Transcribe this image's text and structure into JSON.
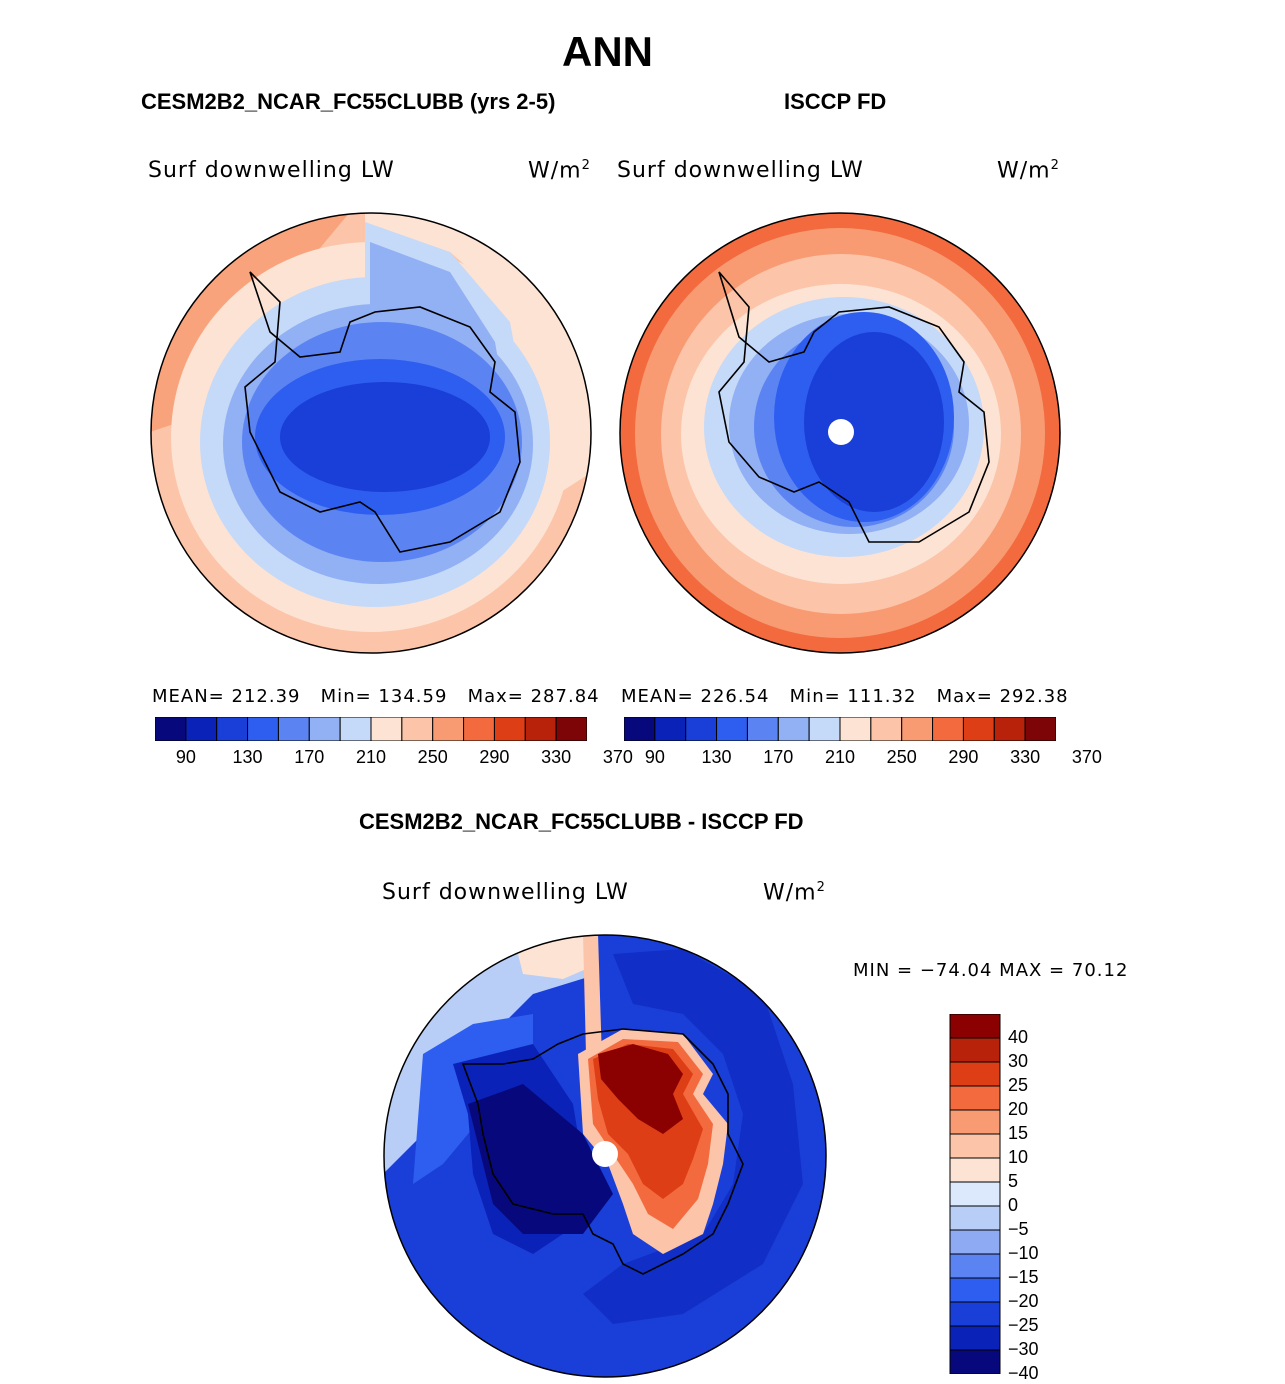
{
  "title": "ANN",
  "top_left": {
    "case_name": "CESM2B2_NCAR_FC55CLUBB (yrs 2-5)",
    "variable": "Surf downwelling LW",
    "units": "W/m",
    "units_exp": "2",
    "mean_label": "MEAN=",
    "mean": "212.39",
    "min_label": "Min=",
    "min": "134.59",
    "max_label": "Max=",
    "max": "287.84"
  },
  "top_right": {
    "case_name": "ISCCP FD",
    "variable": "Surf downwelling LW",
    "units": "W/m",
    "units_exp": "2",
    "mean_label": "MEAN=",
    "mean": "226.54",
    "min_label": "Min=",
    "min": "111.32",
    "max_label": "Max=",
    "max": "292.38"
  },
  "abs_colorbar": {
    "colors": [
      "#08087d",
      "#0b22b8",
      "#1a3fd9",
      "#2e5ef0",
      "#5b84f2",
      "#92b0f4",
      "#c5d9f8",
      "#fde3d4",
      "#fcc4a8",
      "#f89b72",
      "#f26a3e",
      "#de3e15",
      "#b8220b",
      "#7d0508"
    ],
    "tick_labels": [
      "90",
      "130",
      "170",
      "210",
      "250",
      "290",
      "330",
      "370"
    ]
  },
  "difference": {
    "title": "CESM2B2_NCAR_FC55CLUBB - ISCCP FD",
    "variable": "Surf downwelling LW",
    "units": "W/m",
    "units_exp": "2",
    "minmax": "MIN = −74.04 MAX =  70.12",
    "colors": [
      "#8b0000",
      "#b8220b",
      "#de3e15",
      "#f26a3e",
      "#f89b72",
      "#fcc4a8",
      "#fde3d4",
      "#dce8fb",
      "#b8cef7",
      "#8eaaf3",
      "#5b84f2",
      "#2e5ef0",
      "#1a3fd9",
      "#0b22b8",
      "#08087d"
    ],
    "tick_labels": [
      "40",
      "30",
      "25",
      "20",
      "15",
      "10",
      "5",
      "0",
      "−5",
      "−10",
      "−15",
      "−20",
      "−25",
      "−30",
      "−40"
    ]
  }
}
